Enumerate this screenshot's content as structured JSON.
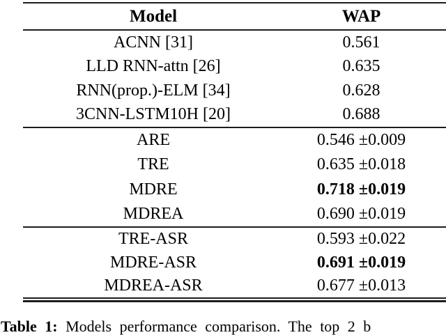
{
  "page": {
    "background_color": "#ffffff",
    "text_color": "#000000",
    "rule_color": "#1c1c1c"
  },
  "table": {
    "columns": {
      "model_header": "Model",
      "wap_header": "WAP"
    },
    "groups": [
      {
        "rows": [
          {
            "model": "ACNN [31]",
            "wap": "0.561"
          },
          {
            "model": "LLD RNN-attn [26]",
            "wap": "0.635"
          },
          {
            "model": "RNN(prop.)-ELM [34]",
            "wap": "0.628"
          },
          {
            "model": "3CNN-LSTM10H [20]",
            "wap": "0.688"
          }
        ]
      },
      {
        "rows": [
          {
            "model": "ARE",
            "wap": "0.546 ±0.009"
          },
          {
            "model": "TRE",
            "wap": "0.635 ±0.018"
          },
          {
            "model": "MDRE",
            "wap": "0.718 ±0.019",
            "bold": true
          },
          {
            "model": "MDREA",
            "wap": "0.690 ±0.019"
          }
        ]
      },
      {
        "rows": [
          {
            "model": "TRE-ASR",
            "wap": "0.593 ±0.022"
          },
          {
            "model": "MDRE-ASR",
            "wap": "0.691 ±0.019",
            "bold": true
          },
          {
            "model": "MDREA-ASR",
            "wap": "0.677 ±0.013"
          }
        ]
      }
    ]
  },
  "caption": {
    "label": "Table 1:",
    "text": "Models performance comparison. The top 2 b"
  }
}
